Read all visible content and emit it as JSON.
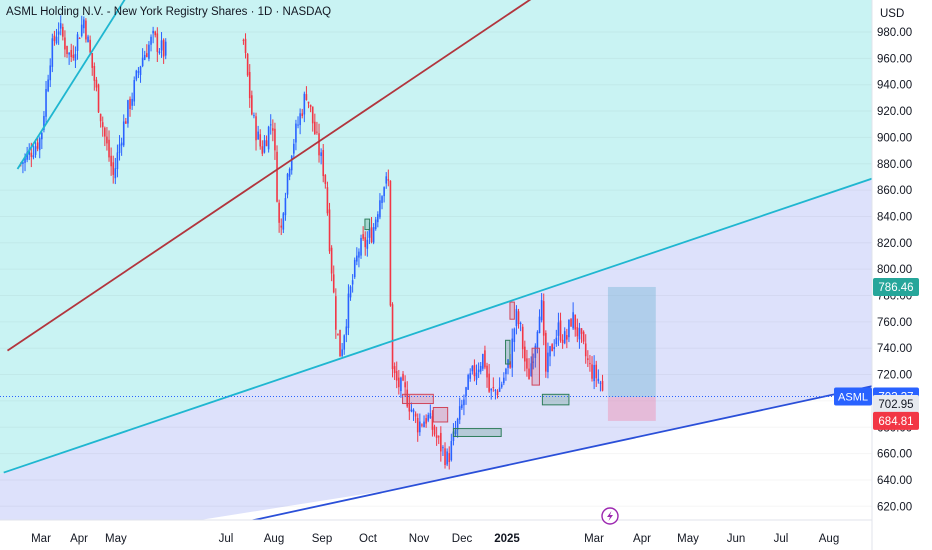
{
  "header": {
    "title": "ASML Holding N.V. - New York Registry Shares · 1D · NASDAQ",
    "currency": "USD"
  },
  "colors": {
    "up": "#26a69a",
    "down": "#ef5350",
    "candle_up": "#2962ff",
    "candle_down": "#f23645",
    "band_cyan": "#c9f3f3",
    "band_lavender": "#dde1fb",
    "line_cyan": "#1fb6d0",
    "line_red": "#b2353d",
    "line_blue": "#2a4fd8",
    "box_green": "#2e7d5b",
    "box_red": "#d0455a"
  },
  "chart_data": {
    "type": "candlestick",
    "symbol": "ASML",
    "y_axis": {
      "min": 620,
      "max": 980,
      "ticks": [
        "620.00",
        "640.00",
        "660.00",
        "680.00",
        "700.00",
        "720.00",
        "740.00",
        "760.00",
        "780.00",
        "800.00",
        "820.00",
        "840.00",
        "860.00",
        "880.00",
        "900.00",
        "920.00",
        "940.00",
        "960.00",
        "980.00"
      ]
    },
    "x_axis": {
      "ticks": [
        {
          "label": "Mar",
          "date": "2024-03-01"
        },
        {
          "label": "Apr",
          "date": "2024-04-01"
        },
        {
          "label": "May",
          "date": "2024-05-01"
        },
        {
          "label": "Jul",
          "date": "2024-07-01"
        },
        {
          "label": "Aug",
          "date": "2024-08-01"
        },
        {
          "label": "Sep",
          "date": "2024-09-01"
        },
        {
          "label": "Oct",
          "date": "2024-10-01"
        },
        {
          "label": "Nov",
          "date": "2024-11-01"
        },
        {
          "label": "Dec",
          "date": "2024-12-01"
        },
        {
          "label": "2025",
          "date": "2025-01-01"
        },
        {
          "label": "Mar",
          "date": "2025-03-01"
        },
        {
          "label": "Apr",
          "date": "2025-04-01"
        },
        {
          "label": "May",
          "date": "2025-05-01"
        },
        {
          "label": "Jun",
          "date": "2025-06-01"
        },
        {
          "label": "Jul",
          "date": "2025-07-01"
        },
        {
          "label": "Aug",
          "date": "2025-08-01"
        }
      ]
    },
    "price_path": [
      [
        "2024-02-15",
        880
      ],
      [
        "2024-03-01",
        900
      ],
      [
        "2024-03-08",
        960
      ],
      [
        "2024-03-15",
        985
      ],
      [
        "2024-03-25",
        960
      ],
      [
        "2024-04-05",
        990
      ],
      [
        "2024-04-15",
        935
      ],
      [
        "2024-04-22",
        900
      ],
      [
        "2024-04-29",
        870
      ],
      [
        "2024-05-06",
        905
      ],
      [
        "2024-05-15",
        935
      ],
      [
        "2024-05-22",
        960
      ],
      [
        "2024-05-31",
        975
      ],
      [
        "2024-06-05",
        965
      ],
      [
        "2024-07-12",
        975
      ],
      [
        "2024-07-18",
        915
      ],
      [
        "2024-07-24",
        890
      ],
      [
        "2024-07-31",
        915
      ],
      [
        "2024-08-05",
        820
      ],
      [
        "2024-08-07",
        850
      ],
      [
        "2024-08-12",
        890
      ],
      [
        "2024-08-22",
        935
      ],
      [
        "2024-08-28",
        900
      ],
      [
        "2024-09-03",
        870
      ],
      [
        "2024-09-06",
        820
      ],
      [
        "2024-09-10",
        760
      ],
      [
        "2024-09-13",
        735
      ],
      [
        "2024-09-19",
        780
      ],
      [
        "2024-09-25",
        815
      ],
      [
        "2024-09-30",
        820
      ],
      [
        "2024-10-04",
        830
      ],
      [
        "2024-10-10",
        865
      ],
      [
        "2024-10-14",
        865
      ],
      [
        "2024-10-15",
        725
      ],
      [
        "2024-10-18",
        715
      ],
      [
        "2024-10-24",
        705
      ],
      [
        "2024-10-31",
        682
      ],
      [
        "2024-11-07",
        688
      ],
      [
        "2024-11-14",
        670
      ],
      [
        "2024-11-21",
        655
      ],
      [
        "2024-11-26",
        675
      ],
      [
        "2024-12-02",
        700
      ],
      [
        "2024-12-06",
        715
      ],
      [
        "2024-12-11",
        725
      ],
      [
        "2024-12-16",
        735
      ],
      [
        "2024-12-20",
        705
      ],
      [
        "2024-12-27",
        710
      ],
      [
        "2025-01-03",
        730
      ],
      [
        "2025-01-07",
        765
      ],
      [
        "2025-01-10",
        755
      ],
      [
        "2025-01-15",
        715
      ],
      [
        "2025-01-20",
        745
      ],
      [
        "2025-01-24",
        780
      ],
      [
        "2025-01-27",
        720
      ],
      [
        "2025-01-31",
        740
      ],
      [
        "2025-02-05",
        755
      ],
      [
        "2025-02-10",
        745
      ],
      [
        "2025-02-14",
        765
      ],
      [
        "2025-02-20",
        745
      ],
      [
        "2025-02-26",
        725
      ],
      [
        "2025-03-05",
        715
      ],
      [
        "2025-03-07",
        703.37
      ]
    ],
    "last_price": "703.37",
    "last_price_label": "ASML",
    "price_labels": [
      {
        "value": "786.46",
        "kind": "target"
      },
      {
        "value": "703.37",
        "kind": "last"
      },
      {
        "value": "702.95",
        "kind": "entry"
      },
      {
        "value": "684.81",
        "kind": "stop"
      }
    ],
    "trendlines": [
      {
        "name": "upper channel",
        "color": "line_cyan",
        "from": [
          "2024-02-15",
          880
        ],
        "to": [
          "2024-06-15",
          1080
        ]
      },
      {
        "name": "middle line",
        "color": "line_red",
        "from": [
          "2024-02-15",
          745
        ],
        "to": [
          "2025-05-01",
          1085
        ]
      },
      {
        "name": "channel top",
        "color": "line_cyan",
        "from": [
          "2024-02-15",
          650
        ],
        "to": [
          "2025-09-01",
          870
        ]
      },
      {
        "name": "channel bottom",
        "color": "line_blue",
        "from": [
          "2024-07-01",
          605
        ],
        "to": [
          "2025-09-01",
          712
        ]
      }
    ],
    "position": {
      "entry": 702.95,
      "target": 786.46,
      "stop": 684.81,
      "start": "2025-03-10",
      "end": "2025-04-10"
    }
  }
}
